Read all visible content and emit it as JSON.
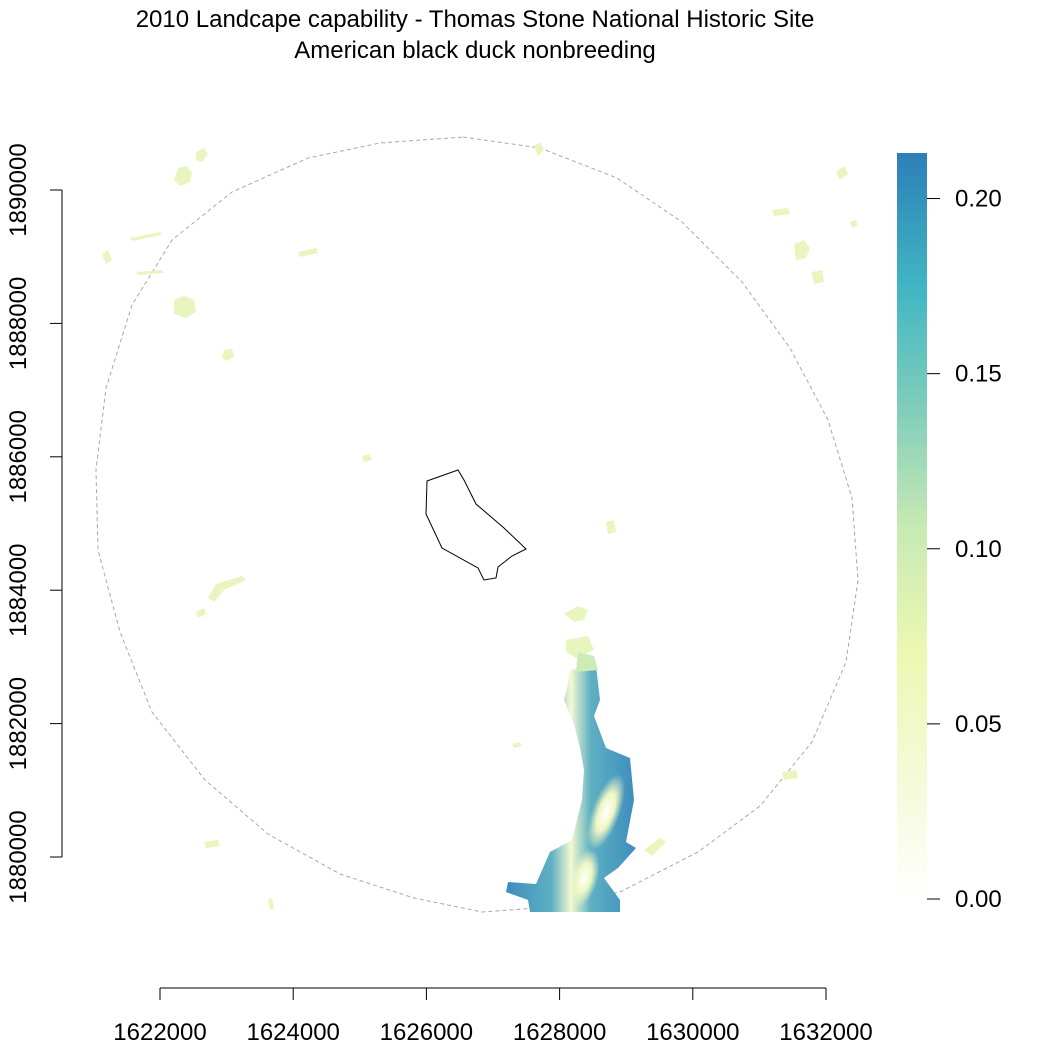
{
  "title": "2010 Landcape capability - Thomas Stone National Historic Site",
  "subtitle": "American black duck nonbreeding",
  "map": {
    "x_axis": {
      "ticks": [
        1622000,
        1624000,
        1626000,
        1628000,
        1630000,
        1632000
      ],
      "tick_labels": [
        "1622000",
        "1624000",
        "1626000",
        "1628000",
        "1630000",
        "1632000"
      ]
    },
    "y_axis": {
      "ticks": [
        1880000,
        1882000,
        1884000,
        1886000,
        1888000,
        1890000
      ],
      "tick_labels": [
        "1880000",
        "1882000",
        "1884000",
        "1886000",
        "1888000",
        "1890000"
      ]
    },
    "features": [
      "park-boundary",
      "buffer-boundary",
      "capability-raster"
    ]
  },
  "legend": {
    "type": "continuous colorbar",
    "range": [
      0,
      0.213
    ],
    "ticks": [
      0.0,
      0.05,
      0.1,
      0.15,
      0.2
    ],
    "tick_labels": [
      "0.00",
      "0.05",
      "0.10",
      "0.15",
      "0.20"
    ],
    "color_stops": [
      "#ffffff",
      "#f5fadb",
      "#edf8b1",
      "#c7e9b4",
      "#7fcdbb",
      "#41b6c4",
      "#2c7fb8"
    ]
  },
  "colors": {
    "boundary_line": "#000000",
    "buffer_line": "#a8a8a8",
    "low_value": "#e8f5bf",
    "high_value": "#3a8bbf"
  }
}
